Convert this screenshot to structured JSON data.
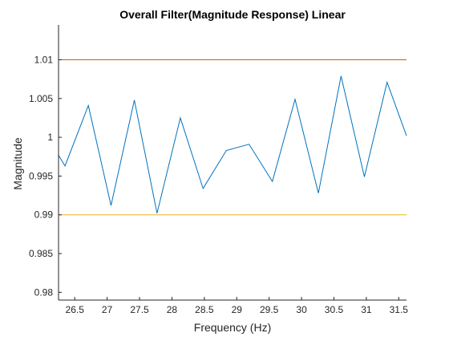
{
  "chart_data": {
    "type": "line",
    "title": "Overall Filter(Magnitude Response) Linear",
    "xlabel": "Frequency (Hz)",
    "ylabel": "Magnitude",
    "xlim": [
      26.25,
      31.62
    ],
    "ylim": [
      0.979,
      1.0145
    ],
    "xticks": [
      26.5,
      27,
      27.5,
      28,
      28.5,
      29,
      29.5,
      30,
      30.5,
      31,
      31.5
    ],
    "xtick_labels": [
      "26.5",
      "27",
      "27.5",
      "28",
      "28.5",
      "29",
      "29.5",
      "30",
      "30.5",
      "31",
      "31.5"
    ],
    "yticks": [
      0.98,
      0.985,
      0.99,
      0.995,
      1.0,
      1.005,
      1.01
    ],
    "ytick_labels": [
      "0.98",
      "0.985",
      "0.99",
      "0.995",
      "1",
      "1.005",
      "1.01"
    ],
    "grid": false,
    "series": [
      {
        "color": "#0072BD",
        "x": [
          26.25,
          26.35,
          26.71,
          27.06,
          27.42,
          27.77,
          28.13,
          28.48,
          28.84,
          29.19,
          29.55,
          29.9,
          30.26,
          30.61,
          30.97,
          31.32,
          31.62
        ],
        "y": [
          0.9977,
          0.9963,
          1.0041,
          0.9912,
          1.0048,
          0.9902,
          1.0025,
          0.9934,
          0.9983,
          0.9991,
          0.9943,
          1.0049,
          0.9928,
          1.0079,
          0.9949,
          1.0071,
          1.0002
        ]
      },
      {
        "color": "#D95319",
        "x": [
          26.25,
          31.62
        ],
        "y": [
          1.01,
          1.01
        ]
      },
      {
        "color": "#EDB120",
        "x": [
          26.25,
          31.62
        ],
        "y": [
          0.99,
          0.99
        ]
      }
    ]
  }
}
